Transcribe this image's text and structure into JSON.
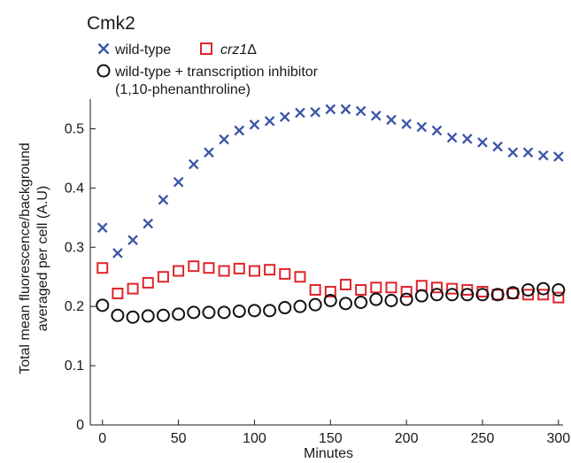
{
  "chart_data": {
    "type": "scatter",
    "title": "Cmk2",
    "xlabel": "Minutes",
    "ylabel": [
      "Total mean fluorescence/background",
      "averaged per cell (A.U)"
    ],
    "xlim": [
      -8,
      303
    ],
    "ylim": [
      0,
      0.55
    ],
    "xticks": [
      0,
      50,
      100,
      150,
      200,
      250,
      300
    ],
    "yticks": [
      0,
      0.1,
      0.2,
      0.3,
      0.4,
      0.5
    ],
    "xtick_labels": [
      "0",
      "50",
      "100",
      "150",
      "200",
      "250",
      "300"
    ],
    "ytick_labels": [
      "0",
      "0.1",
      "0.2",
      "0.3",
      "0.4",
      "0.5"
    ],
    "grid": false,
    "legend_position": "top-left",
    "series": [
      {
        "name": "wild-type",
        "marker": "x",
        "color": "#3b55a6",
        "x": [
          0,
          10,
          20,
          30,
          40,
          50,
          60,
          70,
          80,
          90,
          100,
          110,
          120,
          130,
          140,
          150,
          160,
          170,
          180,
          190,
          200,
          210,
          220,
          230,
          240,
          250,
          260,
          270,
          280,
          290,
          300
        ],
        "y": [
          0.333,
          0.29,
          0.312,
          0.34,
          0.38,
          0.41,
          0.44,
          0.46,
          0.482,
          0.497,
          0.507,
          0.513,
          0.52,
          0.527,
          0.528,
          0.533,
          0.533,
          0.53,
          0.522,
          0.515,
          0.508,
          0.503,
          0.497,
          0.485,
          0.483,
          0.477,
          0.47,
          0.46,
          0.46,
          0.455,
          0.453
        ]
      },
      {
        "name": "crz1Δ",
        "name_italic": "crz1",
        "name_suffix": "Δ",
        "marker": "square",
        "color": "#e0242b",
        "x": [
          0,
          10,
          20,
          30,
          40,
          50,
          60,
          70,
          80,
          90,
          100,
          110,
          120,
          130,
          140,
          150,
          160,
          170,
          180,
          190,
          200,
          210,
          220,
          230,
          240,
          250,
          260,
          270,
          280,
          290,
          300
        ],
        "y": [
          0.265,
          0.222,
          0.23,
          0.24,
          0.25,
          0.26,
          0.268,
          0.265,
          0.26,
          0.264,
          0.26,
          0.262,
          0.255,
          0.25,
          0.228,
          0.225,
          0.237,
          0.228,
          0.232,
          0.232,
          0.225,
          0.235,
          0.232,
          0.23,
          0.228,
          0.225,
          0.22,
          0.222,
          0.22,
          0.22,
          0.215
        ]
      },
      {
        "name": "wild-type + transcription inhibitor",
        "name_line2": "(1,10-phenanthroline)",
        "marker": "circle",
        "color": "#111111",
        "x": [
          0,
          10,
          20,
          30,
          40,
          50,
          60,
          70,
          80,
          90,
          100,
          110,
          120,
          130,
          140,
          150,
          160,
          170,
          180,
          190,
          200,
          210,
          220,
          230,
          240,
          250,
          260,
          270,
          280,
          290,
          300
        ],
        "y": [
          0.202,
          0.185,
          0.182,
          0.184,
          0.185,
          0.187,
          0.19,
          0.19,
          0.19,
          0.192,
          0.193,
          0.193,
          0.198,
          0.2,
          0.203,
          0.21,
          0.205,
          0.207,
          0.212,
          0.21,
          0.212,
          0.218,
          0.22,
          0.22,
          0.22,
          0.22,
          0.22,
          0.223,
          0.228,
          0.23,
          0.228
        ]
      }
    ]
  }
}
